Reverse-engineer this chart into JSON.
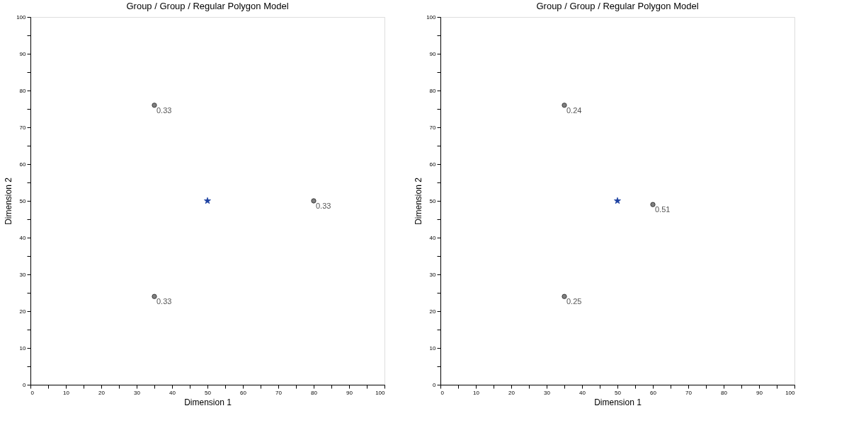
{
  "chart_data": [
    {
      "type": "scatter",
      "title": "Group / Group / Regular Polygon Model",
      "xlabel": "Dimension 1",
      "ylabel": "Dimension 2",
      "xlim": [
        0,
        100
      ],
      "ylim": [
        0,
        100
      ],
      "xticks": [
        0,
        {
          "value": 5,
          "label": null
        },
        10,
        {
          "value": 15,
          "label": null
        },
        20,
        {
          "value": 25,
          "label": null
        },
        30,
        {
          "value": 35,
          "label": null
        },
        40,
        {
          "value": 45,
          "label": null
        },
        50,
        {
          "value": 55,
          "label": null
        },
        60,
        {
          "value": 65,
          "label": null
        },
        70,
        {
          "value": 75,
          "label": null
        },
        80,
        {
          "value": 85,
          "label": null
        },
        90,
        {
          "value": 95,
          "label": null
        },
        100
      ],
      "yticks": [
        0,
        {
          "value": 5,
          "label": null
        },
        10,
        {
          "value": 15,
          "label": null
        },
        20,
        {
          "value": 25,
          "label": null
        },
        30,
        {
          "value": 35,
          "label": null
        },
        40,
        {
          "value": 45,
          "label": null
        },
        50,
        {
          "value": 55,
          "label": null
        },
        60,
        {
          "value": 65,
          "label": null
        },
        70,
        {
          "value": 75,
          "label": null
        },
        80,
        {
          "value": 85,
          "label": null
        },
        90,
        {
          "value": 95,
          "label": null
        },
        100
      ],
      "series": [
        {
          "color": "#808080",
          "marker": "circle",
          "x": [
            35,
            80,
            35
          ],
          "values": [
            76,
            50,
            24
          ]
        },
        {
          "color": "#1a3fa0",
          "marker": "star",
          "x": [
            50
          ],
          "values": [
            50
          ]
        }
      ],
      "annotations": [
        {
          "text": "0.33",
          "x": 35,
          "y": 76
        },
        {
          "text": "0.33",
          "x": 80,
          "y": 50
        },
        {
          "text": "0.33",
          "x": 35,
          "y": 24
        }
      ],
      "grid": false
    },
    {
      "type": "scatter",
      "title": "Group / Group / Regular Polygon Model",
      "xlabel": "Dimension 1",
      "ylabel": "Dimension 2",
      "xlim": [
        0,
        100
      ],
      "ylim": [
        0,
        100
      ],
      "xticks": [
        0,
        {
          "value": 5,
          "label": null
        },
        10,
        {
          "value": 15,
          "label": null
        },
        20,
        {
          "value": 25,
          "label": null
        },
        30,
        {
          "value": 35,
          "label": null
        },
        40,
        {
          "value": 45,
          "label": null
        },
        50,
        {
          "value": 55,
          "label": null
        },
        60,
        {
          "value": 65,
          "label": null
        },
        70,
        {
          "value": 75,
          "label": null
        },
        80,
        {
          "value": 85,
          "label": null
        },
        90,
        {
          "value": 95,
          "label": null
        },
        100
      ],
      "yticks": [
        0,
        {
          "value": 5,
          "label": null
        },
        10,
        {
          "value": 15,
          "label": null
        },
        20,
        {
          "value": 25,
          "label": null
        },
        30,
        {
          "value": 35,
          "label": null
        },
        40,
        {
          "value": 45,
          "label": null
        },
        50,
        {
          "value": 55,
          "label": null
        },
        60,
        {
          "value": 65,
          "label": null
        },
        70,
        {
          "value": 75,
          "label": null
        },
        80,
        {
          "value": 85,
          "label": null
        },
        90,
        {
          "value": 95,
          "label": null
        },
        100
      ],
      "series": [
        {
          "color": "#808080",
          "marker": "circle",
          "x": [
            35,
            60,
            35
          ],
          "values": [
            76,
            49,
            24
          ]
        },
        {
          "color": "#1a3fa0",
          "marker": "star",
          "x": [
            50
          ],
          "values": [
            50
          ]
        }
      ],
      "annotations": [
        {
          "text": "0.24",
          "x": 35,
          "y": 76
        },
        {
          "text": "0.51",
          "x": 60,
          "y": 49
        },
        {
          "text": "0.25",
          "x": 35,
          "y": 24
        }
      ],
      "grid": false
    }
  ]
}
